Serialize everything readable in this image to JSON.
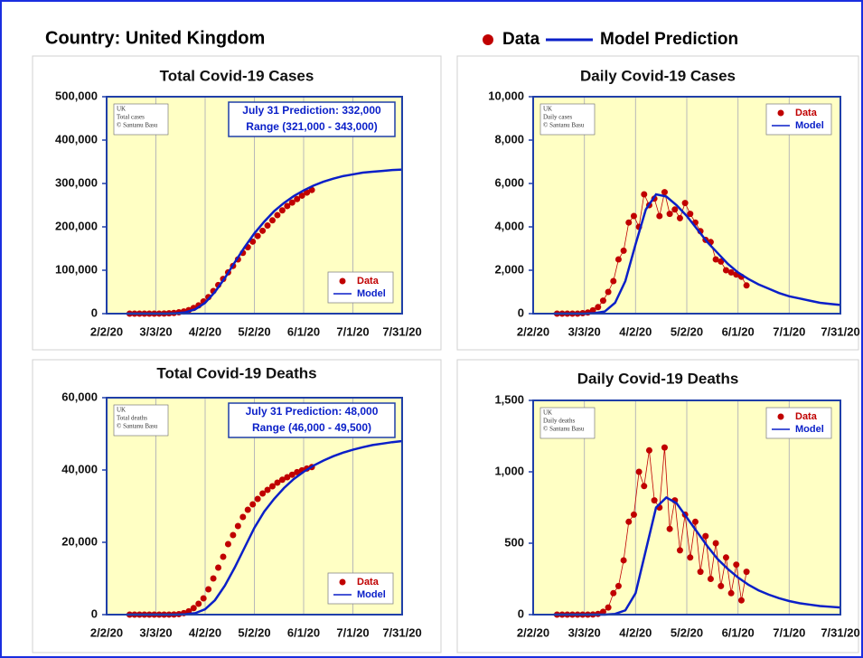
{
  "title": "Country: United Kingdom",
  "legend": [
    "Data",
    "Model Prediction"
  ],
  "chart_data": [
    {
      "type": "line",
      "title": "Total Covid-19 Cases",
      "note": [
        "UK",
        "Total cases",
        "© Santanu Basu"
      ],
      "annotation": [
        "July 31 Prediction: 332,000",
        "Range (321,000 - 343,000)"
      ],
      "legend_position": "lower right",
      "xlim": [
        0,
        180
      ],
      "xticks": [
        {
          "value": 0,
          "label": "2/2/20"
        },
        {
          "value": 30,
          "label": "3/3/20"
        },
        {
          "value": 60,
          "label": "4/2/20"
        },
        {
          "value": 90,
          "label": "5/2/20"
        },
        {
          "value": 120,
          "label": "6/1/20"
        },
        {
          "value": 150,
          "label": "7/1/20"
        },
        {
          "value": 180,
          "label": "7/31/20"
        }
      ],
      "ylim": [
        0,
        500000
      ],
      "yticks": [
        0,
        {
          "value": 100000,
          "label": "100,000"
        },
        {
          "value": 200000,
          "label": "200,000"
        },
        {
          "value": 300000,
          "label": "300,000"
        },
        {
          "value": 400000,
          "label": "400,000"
        },
        {
          "value": 500000,
          "label": "500,000"
        }
      ],
      "series": [
        {
          "name": "Data",
          "type": "scatter",
          "color": "#c00000",
          "connected": false,
          "x": [
            14,
            17,
            20,
            23,
            26,
            29,
            32,
            35,
            38,
            41,
            44,
            47,
            50,
            53,
            56,
            59,
            62,
            65,
            68,
            71,
            74,
            77,
            80,
            83,
            86,
            89,
            92,
            95,
            98,
            101,
            104,
            107,
            110,
            113,
            116,
            119,
            122,
            125
          ],
          "values": [
            0,
            0,
            0,
            0,
            0,
            0,
            100,
            300,
            800,
            1500,
            3000,
            5000,
            8000,
            13000,
            19000,
            28000,
            38000,
            52000,
            66000,
            80000,
            95000,
            110000,
            125000,
            140000,
            153000,
            166000,
            179000,
            191000,
            203000,
            215000,
            227000,
            238000,
            248000,
            256000,
            264000,
            272000,
            279000,
            285000
          ]
        },
        {
          "name": "Model",
          "type": "line",
          "color": "#0a1fc8",
          "x": [
            12,
            18,
            24,
            30,
            36,
            42,
            48,
            54,
            60,
            66,
            72,
            78,
            84,
            90,
            96,
            102,
            108,
            114,
            120,
            126,
            132,
            138,
            144,
            150,
            156,
            162,
            168,
            174,
            180
          ],
          "values": [
            0,
            0,
            0,
            0,
            100,
            800,
            3000,
            10000,
            25000,
            50000,
            82000,
            118000,
            153000,
            185000,
            212000,
            236000,
            255000,
            271000,
            284000,
            295000,
            304000,
            311000,
            317000,
            321000,
            325000,
            327000,
            329000,
            331000,
            332000
          ]
        }
      ]
    },
    {
      "type": "line",
      "title": "Daily Covid-19 Cases",
      "note": [
        "UK",
        "Daily cases",
        "© Santanu Basu"
      ],
      "legend_position": "upper right",
      "xlim": [
        0,
        180
      ],
      "xticks": [
        {
          "value": 0,
          "label": "2/2/20"
        },
        {
          "value": 30,
          "label": "3/3/20"
        },
        {
          "value": 60,
          "label": "4/2/20"
        },
        {
          "value": 90,
          "label": "5/2/20"
        },
        {
          "value": 120,
          "label": "6/1/20"
        },
        {
          "value": 150,
          "label": "7/1/20"
        },
        {
          "value": 180,
          "label": "7/31/20"
        }
      ],
      "ylim": [
        0,
        10000
      ],
      "yticks": [
        0,
        {
          "value": 2000,
          "label": "2,000"
        },
        {
          "value": 4000,
          "label": "4,000"
        },
        {
          "value": 6000,
          "label": "6,000"
        },
        {
          "value": 8000,
          "label": "8,000"
        },
        {
          "value": 10000,
          "label": "10,000"
        }
      ],
      "series": [
        {
          "name": "Data",
          "type": "scatter",
          "color": "#c00000",
          "connected": true,
          "x": [
            14,
            17,
            20,
            23,
            26,
            29,
            32,
            35,
            38,
            41,
            44,
            47,
            50,
            53,
            56,
            59,
            62,
            65,
            68,
            71,
            74,
            77,
            80,
            83,
            86,
            89,
            92,
            95,
            98,
            101,
            104,
            107,
            110,
            113,
            116,
            119,
            122,
            125
          ],
          "values": [
            0,
            0,
            0,
            0,
            0,
            20,
            50,
            150,
            300,
            600,
            1000,
            1500,
            2500,
            2900,
            4200,
            4500,
            4000,
            5500,
            5000,
            5300,
            4500,
            5600,
            4600,
            4800,
            4400,
            5100,
            4600,
            4200,
            3800,
            3400,
            3300,
            2500,
            2400,
            2000,
            1900,
            1800,
            1700,
            1300
          ]
        },
        {
          "name": "Model",
          "type": "line",
          "color": "#0a1fc8",
          "x": [
            12,
            18,
            24,
            30,
            36,
            42,
            48,
            54,
            60,
            66,
            72,
            78,
            84,
            90,
            96,
            102,
            108,
            114,
            120,
            126,
            132,
            138,
            144,
            150,
            156,
            162,
            168,
            174,
            180
          ],
          "values": [
            0,
            0,
            0,
            0,
            20,
            100,
            500,
            1500,
            3200,
            4800,
            5500,
            5400,
            5000,
            4500,
            3900,
            3300,
            2800,
            2300,
            1900,
            1600,
            1350,
            1150,
            950,
            800,
            700,
            600,
            500,
            450,
            400
          ]
        }
      ]
    },
    {
      "type": "line",
      "title": "Total Covid-19 Deaths",
      "note": [
        "UK",
        "Total deaths",
        "© Santanu Basu"
      ],
      "annotation": [
        "July 31 Prediction: 48,000",
        "Range (46,000 - 49,500)"
      ],
      "legend_position": "lower right",
      "xlim": [
        0,
        180
      ],
      "xticks": [
        {
          "value": 0,
          "label": "2/2/20"
        },
        {
          "value": 30,
          "label": "3/3/20"
        },
        {
          "value": 60,
          "label": "4/2/20"
        },
        {
          "value": 90,
          "label": "5/2/20"
        },
        {
          "value": 120,
          "label": "6/1/20"
        },
        {
          "value": 150,
          "label": "7/1/20"
        },
        {
          "value": 180,
          "label": "7/31/20"
        }
      ],
      "ylim": [
        0,
        60000
      ],
      "yticks": [
        0,
        {
          "value": 20000,
          "label": "20,000"
        },
        {
          "value": 40000,
          "label": "40,000"
        },
        {
          "value": 60000,
          "label": "60,000"
        }
      ],
      "series": [
        {
          "name": "Data",
          "type": "scatter",
          "color": "#c00000",
          "connected": false,
          "x": [
            14,
            17,
            20,
            23,
            26,
            29,
            32,
            35,
            38,
            41,
            44,
            47,
            50,
            53,
            56,
            59,
            62,
            65,
            68,
            71,
            74,
            77,
            80,
            83,
            86,
            89,
            92,
            95,
            98,
            101,
            104,
            107,
            110,
            113,
            116,
            119,
            122,
            125
          ],
          "values": [
            0,
            0,
            0,
            0,
            0,
            0,
            0,
            2,
            10,
            40,
            140,
            400,
            900,
            1800,
            3000,
            4500,
            7000,
            10000,
            13000,
            16000,
            19500,
            22000,
            24500,
            27000,
            29000,
            30500,
            32000,
            33500,
            34500,
            35500,
            36500,
            37300,
            38000,
            38700,
            39400,
            39900,
            40400,
            40800
          ]
        },
        {
          "name": "Model",
          "type": "line",
          "color": "#0a1fc8",
          "x": [
            12,
            18,
            24,
            30,
            36,
            42,
            48,
            54,
            60,
            66,
            72,
            78,
            84,
            90,
            96,
            102,
            108,
            114,
            120,
            126,
            132,
            138,
            144,
            150,
            156,
            162,
            168,
            174,
            180
          ],
          "values": [
            0,
            0,
            0,
            0,
            0,
            10,
            100,
            400,
            1500,
            4000,
            8000,
            13000,
            18500,
            24000,
            28500,
            32000,
            35000,
            37500,
            39500,
            41200,
            42600,
            43800,
            44800,
            45600,
            46300,
            46900,
            47300,
            47700,
            48000
          ]
        }
      ]
    },
    {
      "type": "line",
      "title": "Daily Covid-19 Deaths",
      "note": [
        "UK",
        "Daily deaths",
        "© Santanu Basu"
      ],
      "legend_position": "upper right",
      "xlim": [
        0,
        180
      ],
      "xticks": [
        {
          "value": 0,
          "label": "2/2/20"
        },
        {
          "value": 30,
          "label": "3/3/20"
        },
        {
          "value": 60,
          "label": "4/2/20"
        },
        {
          "value": 90,
          "label": "5/2/20"
        },
        {
          "value": 120,
          "label": "6/1/20"
        },
        {
          "value": 150,
          "label": "7/1/20"
        },
        {
          "value": 180,
          "label": "7/31/20"
        }
      ],
      "ylim": [
        0,
        1500
      ],
      "yticks": [
        0,
        500,
        {
          "value": 1000,
          "label": "1,000"
        },
        {
          "value": 1500,
          "label": "1,500"
        }
      ],
      "series": [
        {
          "name": "Data",
          "type": "scatter",
          "color": "#c00000",
          "connected": true,
          "x": [
            14,
            17,
            20,
            23,
            26,
            29,
            32,
            35,
            38,
            41,
            44,
            47,
            50,
            53,
            56,
            59,
            62,
            65,
            68,
            71,
            74,
            77,
            80,
            83,
            86,
            89,
            92,
            95,
            98,
            101,
            104,
            107,
            110,
            113,
            116,
            119,
            122,
            125
          ],
          "values": [
            0,
            0,
            0,
            0,
            0,
            0,
            0,
            1,
            5,
            20,
            50,
            150,
            200,
            380,
            650,
            700,
            1000,
            900,
            1150,
            800,
            750,
            1170,
            600,
            800,
            450,
            700,
            400,
            650,
            300,
            550,
            250,
            500,
            200,
            400,
            150,
            350,
            100,
            300
          ]
        },
        {
          "name": "Model",
          "type": "line",
          "color": "#0a1fc8",
          "x": [
            12,
            18,
            24,
            30,
            36,
            42,
            48,
            54,
            60,
            66,
            72,
            78,
            84,
            90,
            96,
            102,
            108,
            114,
            120,
            126,
            132,
            138,
            144,
            150,
            156,
            162,
            168,
            174,
            180
          ],
          "values": [
            0,
            0,
            0,
            0,
            0,
            0,
            5,
            30,
            150,
            450,
            750,
            820,
            780,
            680,
            580,
            480,
            390,
            320,
            260,
            210,
            170,
            140,
            115,
            95,
            80,
            70,
            60,
            55,
            50
          ]
        }
      ]
    }
  ]
}
